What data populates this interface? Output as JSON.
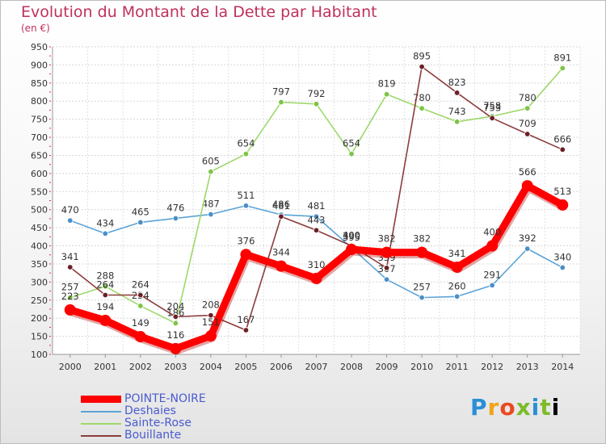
{
  "title": "Evolution du Montant de la Dette par Habitant",
  "unit": "(en €)",
  "logo": [
    "P",
    "r",
    "o",
    "x",
    "i",
    "t",
    "i"
  ],
  "chart_data": {
    "type": "line",
    "x": [
      "2000",
      "2001",
      "2002",
      "2003",
      "2004",
      "2005",
      "2006",
      "2007",
      "2008",
      "2009",
      "2010",
      "2011",
      "2012",
      "2013",
      "2014"
    ],
    "ylim": [
      100,
      950
    ],
    "yticks": [
      100,
      150,
      200,
      250,
      300,
      350,
      400,
      450,
      500,
      550,
      600,
      650,
      700,
      750,
      800,
      850,
      900,
      950
    ],
    "grid": true,
    "legend_position": "bottom-left",
    "series": [
      {
        "name": "Deshaies",
        "color": "#5ba3d8",
        "marker": "#4a8fc8",
        "values": [
          470,
          434,
          465,
          476,
          487,
          511,
          486,
          481,
          395,
          307,
          257,
          260,
          291,
          392,
          340
        ],
        "labels": [
          "470",
          "434",
          "465",
          "476",
          "487",
          "511",
          "486",
          "481",
          "395",
          "307",
          "257",
          "260",
          "291",
          "392",
          "340"
        ]
      },
      {
        "name": "Sainte-Rose",
        "color": "#9ed86a",
        "marker": "#7ec447",
        "values": [
          257,
          288,
          234,
          186,
          605,
          654,
          797,
          792,
          654,
          819,
          780,
          743,
          758,
          780,
          891
        ],
        "labels": [
          "257",
          "288",
          "234",
          "186",
          "605",
          "654",
          "797",
          "792",
          "654",
          "819",
          "780",
          "743",
          "758",
          "780",
          "891"
        ]
      },
      {
        "name": "Bouillante",
        "color": "#8c3c3c",
        "marker": "#6b1f24",
        "values": [
          341,
          264,
          264,
          204,
          208,
          167,
          481,
          443,
          400,
          339,
          895,
          823,
          753,
          709,
          666
        ],
        "labels": [
          "341",
          "264",
          "264",
          "204",
          "208",
          "167",
          "481",
          "443",
          "400",
          "339",
          "895",
          "823",
          "753",
          "709",
          "666"
        ]
      },
      {
        "name": "POINTE-NOIRE",
        "color": "#ff0000",
        "marker": "#ff0000",
        "values": [
          223,
          194,
          149,
          116,
          151,
          376,
          344,
          310,
          390,
          382,
          382,
          341,
          400,
          566,
          513
        ],
        "labels": [
          "223",
          "194",
          "149",
          "116",
          "151",
          "376",
          "344",
          "310",
          "390",
          "382",
          "382",
          "341",
          "400",
          "566",
          "513"
        ]
      }
    ],
    "legend": [
      "POINTE-NOIRE",
      "Deshaies",
      "Sainte-Rose",
      "Bouillante"
    ]
  }
}
